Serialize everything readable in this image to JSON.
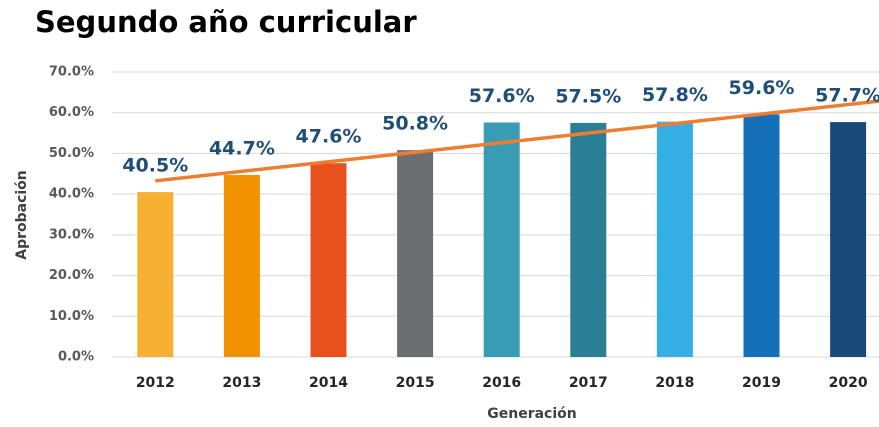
{
  "chart_data": {
    "type": "bar",
    "title": "Segundo año curricular",
    "x_label": "Generación",
    "y_label": "Aprobación",
    "categories": [
      "2012",
      "2013",
      "2014",
      "2015",
      "2016",
      "2017",
      "2018",
      "2019",
      "2020"
    ],
    "values": [
      40.5,
      44.7,
      47.6,
      50.8,
      57.6,
      57.5,
      57.8,
      59.6,
      57.7
    ],
    "value_labels": [
      "40.5%",
      "44.7%",
      "47.6%",
      "50.8%",
      "57.6%",
      "57.5%",
      "57.8%",
      "59.6%",
      "57.7%"
    ],
    "colors": [
      "#f7b033",
      "#f39200",
      "#e8501e",
      "#6d6e71",
      "#3a9bb5",
      "#2a7f94",
      "#35aee6",
      "#1570b8",
      "#1a4a7a"
    ],
    "ylim": [
      0,
      70
    ],
    "yticks": [
      {
        "value": 0,
        "label": "0.0%"
      },
      {
        "value": 10,
        "label": "10.0%"
      },
      {
        "value": 20,
        "label": "20.0%"
      },
      {
        "value": 30,
        "label": "30.0%"
      },
      {
        "value": 40,
        "label": "40.0%"
      },
      {
        "value": 50,
        "label": "50.0%"
      },
      {
        "value": 60,
        "label": "60.0%"
      },
      {
        "value": 70,
        "label": "70.0%"
      }
    ],
    "grid": true,
    "trendline": "linear",
    "trendline_color": "#ed7d31"
  }
}
